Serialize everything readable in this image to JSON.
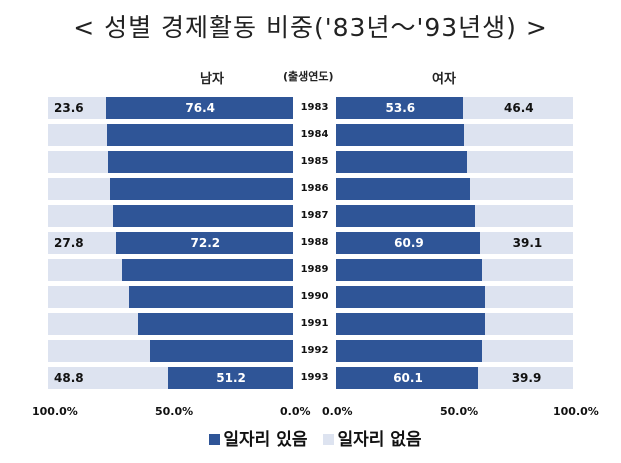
{
  "chart_data": {
    "type": "bar",
    "title": "< 성별 경제활동 비중('83년～'93년생) >",
    "center_label": "(출생연도)",
    "panels": [
      "남자",
      "여자"
    ],
    "categories": [
      "1983",
      "1984",
      "1985",
      "1986",
      "1987",
      "1988",
      "1989",
      "1990",
      "1991",
      "1992",
      "1993"
    ],
    "series": [
      {
        "name": "일자리 있음",
        "color": "#2f5597",
        "male": [
          76.4,
          75.9,
          75.5,
          74.7,
          73.5,
          72.2,
          69.8,
          66.9,
          63.3,
          58.4,
          51.2
        ],
        "female": [
          53.6,
          54.0,
          55.3,
          56.5,
          58.6,
          60.9,
          61.6,
          62.9,
          62.9,
          61.6,
          60.1
        ]
      },
      {
        "name": "일자리 없음",
        "color": "#dde3f0",
        "male": [
          23.6,
          24.1,
          24.5,
          25.3,
          26.5,
          27.8,
          30.2,
          33.1,
          36.7,
          41.6,
          48.8
        ],
        "female": [
          46.4,
          46.0,
          44.7,
          43.5,
          41.4,
          39.1,
          38.4,
          37.1,
          37.1,
          38.4,
          39.9
        ]
      }
    ],
    "labeled_rows": [
      0,
      5,
      10
    ],
    "male_ticks": [
      "100.0%",
      "50.0%",
      "0.0%"
    ],
    "female_ticks": [
      "0.0%",
      "50.0%",
      "100.0%"
    ],
    "xlim": [
      0,
      100
    ]
  }
}
